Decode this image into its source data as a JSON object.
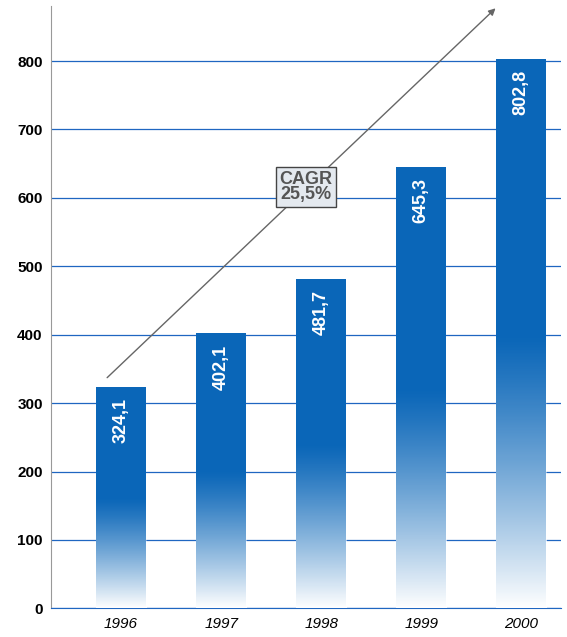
{
  "chart_data": {
    "type": "bar",
    "categories": [
      "1996",
      "1997",
      "1998",
      "1999",
      "2000"
    ],
    "values": [
      324.1,
      402.1,
      481.7,
      645.3,
      802.8
    ],
    "value_labels": [
      "324,1",
      "402,1",
      "481,7",
      "645,3",
      "802,8"
    ],
    "data_labels": true,
    "color": "#0a66b8",
    "ylim": [
      0,
      880
    ],
    "yticks": [
      0,
      100,
      200,
      300,
      400,
      500,
      600,
      700,
      800
    ],
    "grid": true,
    "annotation": "CAGR\n25,5%"
  }
}
